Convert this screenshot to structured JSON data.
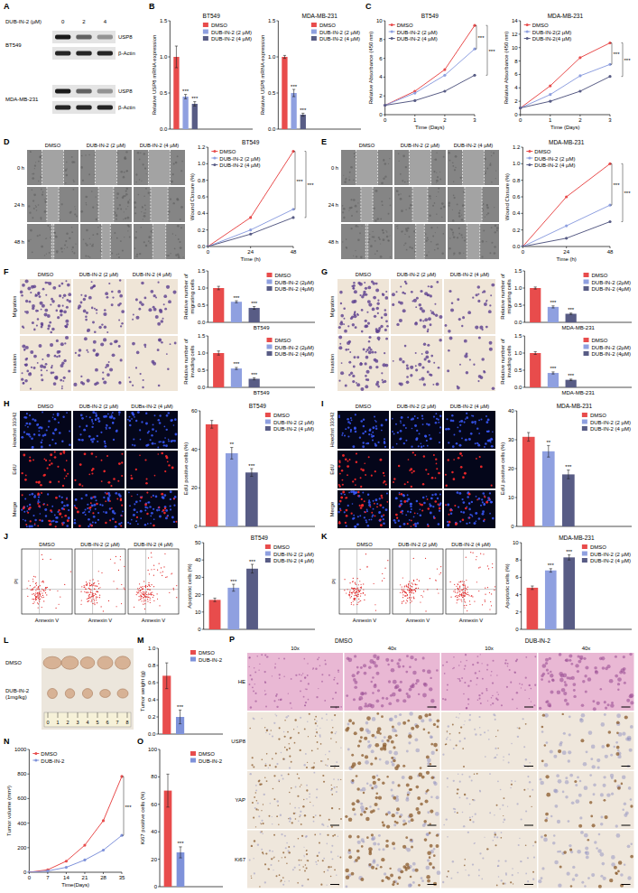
{
  "chart_data": [
    {
      "type": "bar",
      "title": "BT549",
      "y_label": "Relative USP8 mRNA expression",
      "categories": [
        "DMSO",
        "DUB-IN-2 (2 µM)",
        "DUB-IN-2 (4 µM)"
      ],
      "values": [
        1.0,
        0.45,
        0.35
      ],
      "errors": [
        0.15,
        0.03,
        0.03
      ],
      "colors": [
        "#e84c4c",
        "#8fa0e0",
        "#585c85"
      ],
      "annotations": [
        null,
        "***",
        "***"
      ],
      "ylim": [
        0,
        1.5
      ],
      "yticks": [
        {
          "value": 0,
          "label": "0.0"
        },
        0.5,
        {
          "value": 1,
          "label": "1.0"
        },
        1.5
      ],
      "legend": "upper right",
      "tick_labels": "y"
    },
    {
      "type": "bar",
      "title": "MDA-MB-231",
      "y_label": "Relative USP8 mRNA expression",
      "categories": [
        "DMSO",
        "DUB-IN-2 (2 µM)",
        "DUB-IN-2 (4 µM)"
      ],
      "values": [
        1.0,
        0.5,
        0.2
      ],
      "errors": [
        0.02,
        0.05,
        0.02
      ],
      "colors": [
        "#e84c4c",
        "#8fa0e0",
        "#585c85"
      ],
      "annotations": [
        null,
        "***",
        "***"
      ],
      "ylim": [
        0,
        1.5
      ],
      "yticks": [
        {
          "value": 0,
          "label": "0.0"
        },
        0.5,
        {
          "value": 1,
          "label": "1.0"
        },
        1.5
      ],
      "legend": "upper right",
      "tick_labels": "y"
    },
    {
      "type": "line",
      "title": "BT549",
      "x_label": "Time (Days)",
      "y_label": "Relative Absorbance (450 nm)",
      "x": [
        0,
        1,
        2,
        3
      ],
      "series": [
        {
          "name": "DMSO",
          "color": "#e84c4c",
          "values": [
            1,
            2.5,
            4.8,
            9.5
          ]
        },
        {
          "name": "DUB-IN-2 (2 µM)",
          "color": "#8fa0e0",
          "values": [
            1,
            2.3,
            4.2,
            7.0
          ]
        },
        {
          "name": "DUB-IN-2 (4 µM)",
          "color": "#585c85",
          "values": [
            1,
            1.5,
            2.5,
            4.2
          ]
        }
      ],
      "xlim": [
        0,
        3
      ],
      "xticks": [
        0,
        1,
        2,
        3
      ],
      "ylim": [
        0,
        10
      ],
      "yticks": [
        0,
        2,
        4,
        6,
        8,
        10
      ],
      "marker": "circle",
      "legend": "upper left",
      "annotations": [
        "***",
        "***"
      ]
    },
    {
      "type": "line",
      "title": "MDA-MB-231",
      "x_label": "Time (Days)",
      "y_label": "Relative Absorbance (450 nm)",
      "x": [
        0,
        1,
        2,
        3
      ],
      "series": [
        {
          "name": "DMSO",
          "color": "#e84c4c",
          "values": [
            1,
            4.3,
            8.5,
            10.7
          ]
        },
        {
          "name": "DUB-IN-2(2 µM)",
          "color": "#8fa0e0",
          "values": [
            1,
            3,
            5.8,
            7.5
          ]
        },
        {
          "name": "DUB-IN-2(4 µM)",
          "color": "#585c85",
          "values": [
            1,
            2,
            3.5,
            5.7
          ]
        }
      ],
      "xlim": [
        0,
        3
      ],
      "xticks": [
        0,
        1,
        2,
        3
      ],
      "ylim": [
        0,
        14
      ],
      "yticks": [
        0,
        2,
        4,
        6,
        8,
        10,
        12,
        14
      ],
      "marker": "circle",
      "legend": "upper left",
      "annotations": [
        "***",
        "***"
      ]
    },
    {
      "type": "line",
      "title": "BT549",
      "x_label": "Time (h)",
      "y_label": "Wound Closure (%)",
      "x": [
        0,
        24,
        48
      ],
      "series": [
        {
          "name": "DMSO",
          "color": "#e84c4c",
          "values": [
            0,
            0.35,
            1.15
          ]
        },
        {
          "name": "DUB-IN-2 (2 µM)",
          "color": "#8fa0e0",
          "values": [
            0,
            0.2,
            0.45
          ]
        },
        {
          "name": "DUB-IN-2 (4 µM)",
          "color": "#585c85",
          "values": [
            0,
            0.15,
            0.35
          ]
        }
      ],
      "xlim": [
        0,
        48
      ],
      "xticks": [
        0,
        24,
        48
      ],
      "ylim": [
        0,
        1.2
      ],
      "yticks": [
        {
          "value": 0,
          "label": "0.0"
        },
        0.2,
        0.4,
        0.6,
        0.8,
        {
          "value": 1,
          "label": "1.0"
        },
        1.2
      ],
      "marker": "circle",
      "legend": "upper left",
      "annotations": [
        "***",
        "***"
      ]
    },
    {
      "type": "line",
      "title": "MDA-MB-231",
      "x_label": "Time (h)",
      "y_label": "Wound Closure (%)",
      "x": [
        0,
        24,
        48
      ],
      "series": [
        {
          "name": "DMSO",
          "color": "#e84c4c",
          "values": [
            0,
            0.6,
            1.0
          ]
        },
        {
          "name": "DUB-IN-2 (2 µM)",
          "color": "#8fa0e0",
          "values": [
            0,
            0.25,
            0.5
          ]
        },
        {
          "name": "DUB-IN-2 (4 µM)",
          "color": "#585c85",
          "values": [
            0,
            0.1,
            0.3
          ]
        }
      ],
      "xlim": [
        0,
        48
      ],
      "xticks": [
        0,
        24,
        48
      ],
      "ylim": [
        0,
        1.2
      ],
      "yticks": [
        {
          "value": 0,
          "label": "0.0"
        },
        0.2,
        0.4,
        0.6,
        0.8,
        {
          "value": 1,
          "label": "1.0"
        },
        1.2
      ],
      "marker": "circle",
      "legend": "upper left",
      "annotations": [
        "***",
        "***"
      ]
    },
    {
      "type": "bar",
      "x_label": "BT549",
      "y_label": "Relative number of migrating cells",
      "categories": [
        "DMSO",
        "DUB-IN-2 (2µM)",
        "DUB-IN-2 (4µM)"
      ],
      "values": [
        1.0,
        0.6,
        0.42
      ],
      "errors": [
        0.05,
        0.03,
        0.04
      ],
      "colors": [
        "#e84c4c",
        "#8fa0e0",
        "#585c85"
      ],
      "annotations": [
        null,
        "***",
        "***"
      ],
      "ylim": [
        0,
        1.5
      ],
      "yticks": [
        {
          "value": 0,
          "label": "0.0"
        },
        0.5,
        {
          "value": 1,
          "label": "1.0"
        },
        1.5
      ],
      "legend": "upper right",
      "tick_labels": "y"
    },
    {
      "type": "bar",
      "x_label": "BT549",
      "y_label": "Relative number of invading cells",
      "categories": [
        "DMSO",
        "DUB-IN-2 (2µM)",
        "DUB-IN-2 (4µM)"
      ],
      "values": [
        1.0,
        0.55,
        0.25
      ],
      "errors": [
        0.06,
        0.03,
        0.03
      ],
      "colors": [
        "#e84c4c",
        "#8fa0e0",
        "#585c85"
      ],
      "annotations": [
        null,
        "***",
        "***"
      ],
      "ylim": [
        0,
        1.5
      ],
      "yticks": [
        {
          "value": 0,
          "label": "0.0"
        },
        0.5,
        {
          "value": 1,
          "label": "1.0"
        },
        1.5
      ],
      "legend": "upper right",
      "tick_labels": "y"
    },
    {
      "type": "bar",
      "x_label": "MDA-MB-231",
      "y_label": "Relative number of migrating cells",
      "categories": [
        "DMSO",
        "DUB-IN-2 (2µM)",
        "DUB-IN-2 (4µM)"
      ],
      "values": [
        1.0,
        0.45,
        0.25
      ],
      "errors": [
        0.03,
        0.03,
        0.02
      ],
      "colors": [
        "#e84c4c",
        "#8fa0e0",
        "#585c85"
      ],
      "annotations": [
        null,
        "***",
        "***"
      ],
      "ylim": [
        0,
        1.5
      ],
      "yticks": [
        {
          "value": 0,
          "label": "0.0"
        },
        0.5,
        {
          "value": 1,
          "label": "1.0"
        },
        1.5
      ],
      "legend": "upper right",
      "tick_labels": "y"
    },
    {
      "type": "bar",
      "x_label": "MDA-MB-231",
      "y_label": "Relative number of invading cells",
      "categories": [
        "DMSO",
        "DUB-IN-2 (2µM)",
        "DUB-IN-2 (4µM)"
      ],
      "values": [
        1.0,
        0.42,
        0.22
      ],
      "errors": [
        0.04,
        0.03,
        0.02
      ],
      "colors": [
        "#e84c4c",
        "#8fa0e0",
        "#585c85"
      ],
      "annotations": [
        null,
        "***",
        "***"
      ],
      "ylim": [
        0,
        1.5
      ],
      "yticks": [
        {
          "value": 0,
          "label": "0.0"
        },
        0.5,
        {
          "value": 1,
          "label": "1.0"
        },
        1.5
      ],
      "legend": "upper right",
      "tick_labels": "y"
    },
    {
      "type": "bar",
      "title": "BT549",
      "y_label": "EdU positive cells (%)",
      "categories": [
        "DMSO",
        "DUB-IN-2 (2 µM)",
        "DUB-IN-2 (4 µM)"
      ],
      "values": [
        53,
        38,
        28
      ],
      "errors": [
        2,
        3,
        2
      ],
      "colors": [
        "#e84c4c",
        "#8fa0e0",
        "#585c85"
      ],
      "annotations": [
        null,
        "**",
        "***"
      ],
      "ylim": [
        0,
        60
      ],
      "yticks": [
        0,
        20,
        40,
        60
      ],
      "legend": "upper right",
      "tick_labels": "y"
    },
    {
      "type": "bar",
      "title": "MDA-MB-231",
      "y_label": "EdU positive cells (%)",
      "categories": [
        "DMSO",
        "DUB-IN-2 (2 µM)",
        "DUB-IN-2 (4 µM)"
      ],
      "values": [
        31,
        26,
        18
      ],
      "errors": [
        1.5,
        2,
        1.5
      ],
      "colors": [
        "#e84c4c",
        "#8fa0e0",
        "#585c85"
      ],
      "annotations": [
        null,
        "**",
        "***"
      ],
      "ylim": [
        0,
        40
      ],
      "yticks": [
        0,
        10,
        20,
        30,
        40
      ],
      "legend": "upper right",
      "tick_labels": "y"
    },
    {
      "type": "bar",
      "title": "BT549",
      "y_label": "Apoptotic cells (%)",
      "categories": [
        "DMSO",
        "DUB-IN-2 (2 µM)",
        "DUB-IN-2 (4 µM)"
      ],
      "values": [
        17,
        24,
        35
      ],
      "errors": [
        1,
        2,
        2.5
      ],
      "colors": [
        "#e84c4c",
        "#8fa0e0",
        "#585c85"
      ],
      "annotations": [
        null,
        "***",
        "***"
      ],
      "ylim": [
        0,
        50
      ],
      "yticks": [
        0,
        10,
        20,
        30,
        40,
        50
      ],
      "legend": "upper right",
      "tick_labels": "y"
    },
    {
      "type": "bar",
      "title": "MDA-MB-231",
      "y_label": "Apoptotic cells (%)",
      "categories": [
        "DMSO",
        "DUB-IN-2 (2 µM)",
        "DUB-IN-2 (4 µM)"
      ],
      "values": [
        4.8,
        6.8,
        8.3
      ],
      "errors": [
        0.2,
        0.2,
        0.3
      ],
      "colors": [
        "#e84c4c",
        "#8fa0e0",
        "#585c85"
      ],
      "annotations": [
        null,
        "***",
        "***"
      ],
      "ylim": [
        0,
        10
      ],
      "yticks": [
        0,
        2,
        4,
        6,
        8,
        10
      ],
      "legend": "upper right",
      "tick_labels": "y"
    },
    {
      "type": "bar",
      "y_label": "Tumor weight (g)",
      "categories": [
        "DMSO",
        "DUB-IN-2"
      ],
      "values": [
        0.68,
        0.2
      ],
      "errors": [
        0.15,
        0.08
      ],
      "colors": [
        "#e84c4c",
        "#7f92da"
      ],
      "annotations": [
        null,
        "***"
      ],
      "ylim": [
        0,
        1.0
      ],
      "yticks": [
        {
          "value": 0,
          "label": "0.0"
        },
        0.2,
        0.4,
        0.6,
        0.8,
        {
          "value": 1,
          "label": "1.0"
        }
      ],
      "legend": "upper right",
      "tick_labels": "y"
    },
    {
      "type": "line",
      "x_label": "Time(Days)",
      "y_label": "Tumor volume (mm³)",
      "x": [
        0,
        7,
        14,
        21,
        28,
        35
      ],
      "series": [
        {
          "name": "DMSO",
          "color": "#e84c4c",
          "values": [
            0,
            20,
            90,
            220,
            420,
            780
          ]
        },
        {
          "name": "DUB-IN-2",
          "color": "#7f92da",
          "values": [
            0,
            10,
            40,
            100,
            180,
            300
          ]
        }
      ],
      "xlim": [
        0,
        35
      ],
      "xticks": [
        0,
        7,
        14,
        21,
        28,
        35
      ],
      "ylim": [
        0,
        1000
      ],
      "yticks": [
        0,
        200,
        400,
        600,
        800,
        1000
      ],
      "marker": "circle",
      "legend": "upper left",
      "annotations": [
        "***"
      ]
    },
    {
      "type": "bar",
      "y_label": "Ki67 positive cells (%)",
      "categories": [
        "DMSO",
        "DUB-IN-2"
      ],
      "values": [
        70,
        25
      ],
      "errors": [
        12,
        4
      ],
      "colors": [
        "#e84c4c",
        "#7f92da"
      ],
      "annotations": [
        null,
        "***"
      ],
      "ylim": [
        0,
        100
      ],
      "yticks": [
        0,
        20,
        40,
        60,
        80,
        100
      ],
      "legend": "upper right",
      "tick_labels": "y"
    }
  ],
  "figure": {
    "panel_letters": [
      "A",
      "B",
      "C",
      "D",
      "E",
      "F",
      "G",
      "H",
      "I",
      "J",
      "K",
      "L",
      "M",
      "N",
      "O",
      "P"
    ],
    "blot": {
      "treatment": "DUB-IN-2 (µM)",
      "doses": [
        "0",
        "2",
        "4"
      ],
      "cell_lines": [
        "BT549",
        "MDA-MB-231"
      ],
      "proteins": [
        "USP8",
        "β-Actin"
      ]
    },
    "wound": [
      {
        "columns": [
          "DMSO",
          "DUB-IN-2 (2 µM)",
          "DUB-IN-2 (4 µM)"
        ],
        "rows": [
          "0 h",
          "24 h",
          "48 h"
        ]
      },
      {
        "columns": [
          "DMSO",
          "DUB-IN-2 (2 µM)",
          "DUB-IN-2 (4 µM)"
        ],
        "rows": [
          "0 h",
          "24 h",
          "48 h"
        ]
      }
    ],
    "transwell": [
      {
        "columns": [
          "DMSO",
          "DUB-IN-2 (2 µM)",
          "DUB-IN-2 (4 µM)"
        ],
        "rows": [
          "Migration",
          "Invasion"
        ]
      },
      {
        "columns": [
          "DMSO",
          "DUB-IN-2 (2 µM)",
          "DUB-IN-2 (4 µM)"
        ],
        "rows": [
          "Migration",
          "Invasion"
        ]
      }
    ],
    "edu": [
      {
        "columns": [
          "DMSO",
          "DUB-IN-2 (2 µM)",
          "DUBs-IN-2 (4 µM)"
        ],
        "rows": [
          "Hoechst 33342",
          "EdU",
          "Merge"
        ]
      },
      {
        "columns": [
          "DMSO",
          "DUB-IN-2 (2 µM)",
          "DUB-IN-2 (4 µM)"
        ],
        "rows": [
          "Hoechst 33342",
          "EdU",
          "Merge"
        ]
      }
    ],
    "flow": [
      {
        "columns": [
          "DMSO",
          "DUB-IN-2 (2 µM)",
          "DUB-IN-2 (4 µM)"
        ],
        "x_label": "Annexin V",
        "y_label": "PI"
      },
      {
        "columns": [
          "DMSO",
          "DUB-IN-2 (2 µM)",
          "DUB-IN-2 (4 µM)"
        ],
        "x_label": "Annexin V",
        "y_label": "PI"
      }
    ],
    "tumor_photo": {
      "groups": [
        "DMSO",
        "DUB-IN-2 (1mg/kg)"
      ],
      "ruler": [
        "0",
        "1",
        "2",
        "3",
        "4",
        "5",
        "6",
        "7",
        "8"
      ]
    },
    "ihc": {
      "groups": [
        "DMSO",
        "DUB-IN-2"
      ],
      "magnifications": [
        "10x",
        "40x"
      ],
      "rows": [
        "HE",
        "USP8",
        "YAP",
        "Ki67"
      ]
    }
  }
}
